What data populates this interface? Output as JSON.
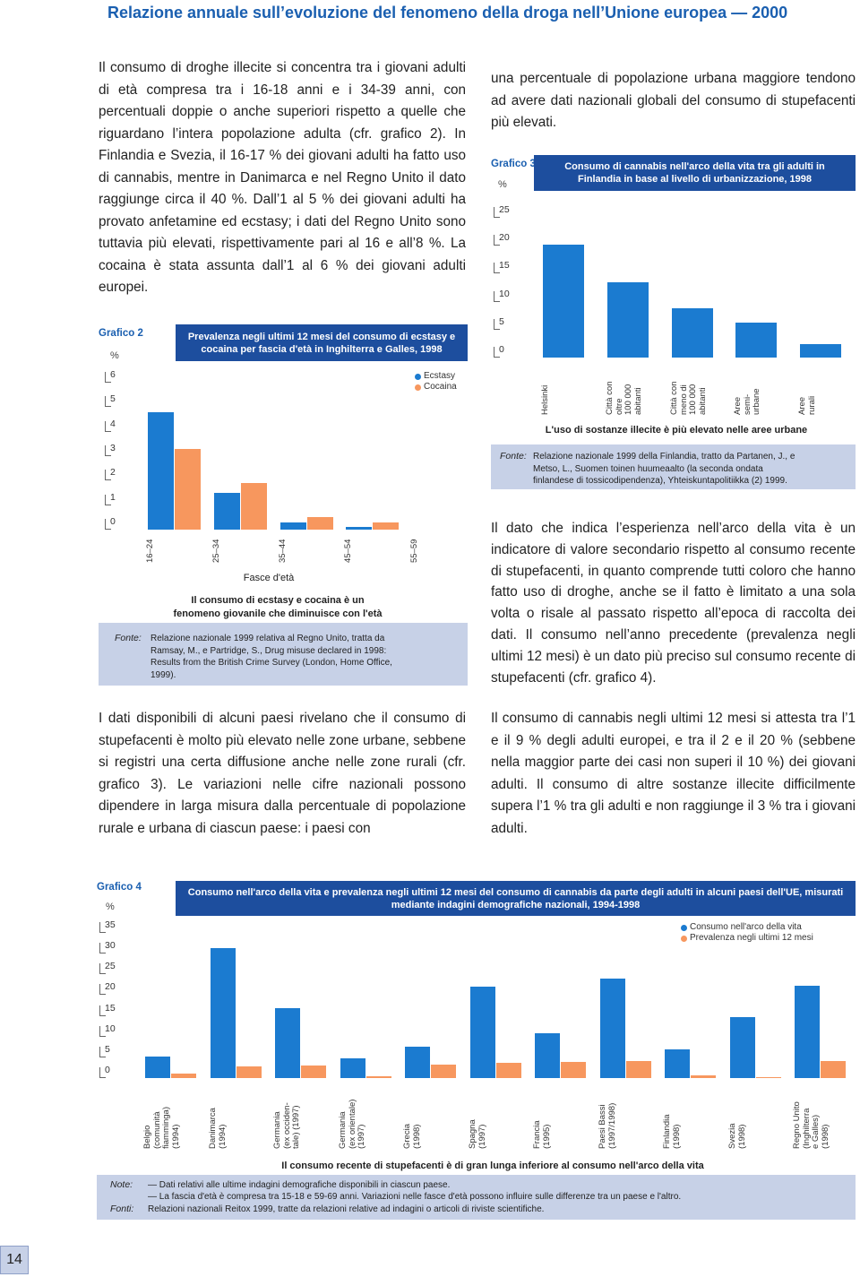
{
  "header": {
    "title": "Relazione annuale sull’evoluzione del fenomeno della droga nell’Unione europea — 2000"
  },
  "paragraphs": [
    "Il consumo di droghe illecite si concentra tra i giovani adulti di età compresa tra i 16-18 anni e i 34-39 anni, con percentuali doppie o anche superiori rispetto a quelle che riguardano l’intera popolazione adulta (cfr. grafico 2). In Finlandia e Svezia, il 16-17 % dei giovani adulti ha fatto uso di cannabis, mentre in Danimarca e nel Regno Unito il dato raggiunge circa il 40 %. Dall’1 al 5 % dei giovani adulti ha provato anfetamine ed ecstasy; i dati del Regno Unito sono tuttavia più elevati, rispettivamente pari al 16 e all’8 %. La cocaina è stata assunta dall’1 al 6 % dei giovani adulti europei.",
    "una percentuale di popolazione urbana maggiore tendono ad avere dati nazionali globali del consumo di stupefacenti più elevati.",
    "I dati disponibili di alcuni paesi rivelano che il consumo di stupefacenti è molto più elevato nelle zone urbane, sebbene si registri una certa diffusione anche nelle zone rurali (cfr. grafico 3). Le variazioni nelle cifre nazionali possono dipendere in larga misura dalla percentuale di popolazione rurale e urbana di ciascun paese: i paesi con",
    "Il dato che indica l’esperienza nell’arco della vita è un indicatore di valore secondario rispetto al consumo recente di stupefacenti, in quanto comprende tutti coloro che hanno fatto uso di droghe, anche se il fatto è limitato a una sola volta o risale al passato rispetto all’epoca di raccolta dei dati. Il consumo nell’anno precedente (prevalenza negli ultimi 12 mesi) è un dato più preciso sul consumo recente di stupefacenti (cfr. grafico 4).",
    "Il consumo di cannabis negli ultimi 12 mesi si attesta tra l’1 e il 9 % degli adulti europei, e tra il 2 e il 20 % (sebbene nella maggior parte dei casi non superi il 10 %) dei giovani adulti. Il consumo di altre sostanze illecite difficilmente supera l’1 % tra gli adulti e non raggiunge il 3 % tra i giovani adulti."
  ],
  "chart_data": [
    {
      "type": "bar",
      "label": "Grafico 2",
      "y_label": "%",
      "title": "Prevalenza negli ultimi 12 mesi del consumo di ecstasy e cocaina per fascia d'età in Inghilterra e Galles, 1998",
      "x_label": "Fasce d'età",
      "caption": "Il consumo di ecstasy e cocaina è un fenomeno giovanile che diminuisce con l'età",
      "source_label": "Fonte:",
      "source": "Relazione nazionale 1999 relativa al Regno Unito, tratta da Ramsay, M., e Partridge, S., Drug misuse declared in 1998: Results from the British Crime Survey (London, Home Office, 1999).",
      "categories": [
        "16–24",
        "25–34",
        "35–44",
        "45–54",
        "55–59"
      ],
      "series": [
        {
          "name": "Ecstasy",
          "color": "#1b7bd0",
          "values": [
            4.8,
            1.5,
            0.3,
            0.1,
            0
          ]
        },
        {
          "name": "Cocaina",
          "color": "#f7975e",
          "values": [
            3.3,
            1.9,
            0.5,
            0.3,
            0
          ]
        }
      ],
      "ylim": [
        0,
        6
      ],
      "yticks": [
        0,
        1,
        2,
        3,
        4,
        5,
        6
      ],
      "legend": "upper right"
    },
    {
      "type": "bar",
      "label": "Grafico 3",
      "y_label": "%",
      "title": "Consumo di cannabis nell'arco della vita tra gli adulti in Finlandia in base al livello di urbanizzazione, 1998",
      "caption": "L'uso di sostanze illecite è più elevato nelle aree urbane",
      "source_label": "Fonte:",
      "source": "Relazione nazionale 1999 della Finlandia, tratto da Partanen, J., e Metso, L., Suomen toinen huumeaalto (la seconda ondata finlandese di tossicodipendenza), Yhteiskuntapolitiikka (2) 1999.",
      "categories": [
        "Helsinki",
        "Città con\noltre\n100 000\nabitanti",
        "Città con\nmeno di\n100 000\nabitanti",
        "Aree\nsemi-\nurbane",
        "Aree\nrurali"
      ],
      "values": [
        20.2,
        13.5,
        8.8,
        6.2,
        2.4
      ],
      "color": "#1b7bd0",
      "ylim": [
        0,
        25
      ],
      "yticks": [
        0,
        5,
        10,
        15,
        20,
        25
      ]
    },
    {
      "type": "bar",
      "label": "Grafico 4",
      "y_label": "%",
      "title": "Consumo nell'arco della vita e prevalenza negli ultimi 12 mesi del consumo di cannabis da parte degli adulti in alcuni paesi dell'UE, misurati mediante indagini demografiche nazionali, 1994-1998",
      "caption": "Il consumo recente di stupefacenti è di gran lunga inferiore al consumo nell'arco della vita",
      "note_label": "Note:",
      "notes": [
        "— Dati relativi alle ultime indagini demografiche disponibili in ciascun paese.",
        "— La fascia d'età è compresa tra 15-18 e 59-69 anni. Variazioni nelle fasce d'età possono influire sulle differenze tra un paese e l'altro."
      ],
      "source_label": "Fonti:",
      "source": "Relazioni nazionali Reitox 1999, tratte da relazioni relative ad indagini o articoli di riviste scientifiche.",
      "categories": [
        "Belgio\n(comunità\nfiamminga)\n(1994)",
        "Danimarca\n(1994)",
        "Germania\n(ex occiden-\ntale) (1997)",
        "Germania\n(ex orientale)\n(1997)",
        "Grecia\n(1998)",
        "Spagna\n(1997)",
        "Francia\n(1995)",
        "Paesi Bassi\n(1997/1998)",
        "Finlandia\n(1998)",
        "Svezia\n(1998)",
        "Regno Unito\n(Inghilterra\ne Galles)\n(1998)"
      ],
      "series": [
        {
          "name": "Consumo nell'arco della vita",
          "color": "#1b7bd0",
          "values": [
            5.2,
            31.3,
            16.8,
            4.8,
            7.6,
            22,
            10.8,
            24,
            6.9,
            14.7,
            22.2
          ]
        },
        {
          "name": "Prevalenza negli ultimi 12 mesi",
          "color": "#f7975e",
          "values": [
            1.1,
            2.8,
            3,
            0.5,
            3.2,
            3.7,
            3.9,
            4.1,
            0.6,
            0.3,
            4.1
          ]
        }
      ],
      "ylim": [
        0,
        35
      ],
      "yticks": [
        0,
        5,
        10,
        15,
        20,
        25,
        30,
        35
      ],
      "legend": "upper right"
    }
  ],
  "page_number": "14"
}
